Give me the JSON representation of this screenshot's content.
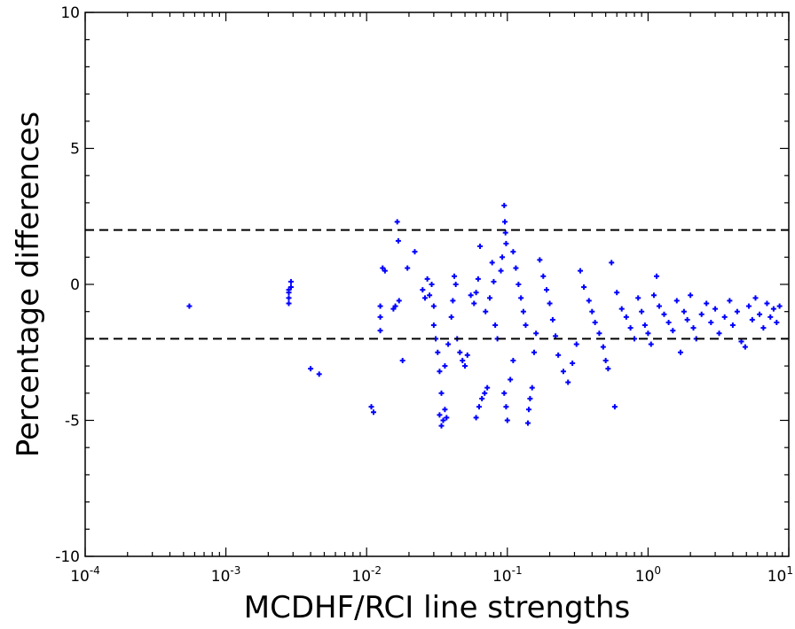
{
  "chart_data": {
    "type": "scatter",
    "xlabel": "MCDHF/RCI line strengths",
    "ylabel": "Percentage differences",
    "x_scale": "log",
    "xlim": [
      0.0001,
      10
    ],
    "ylim": [
      -10,
      10
    ],
    "x_ticks": [
      {
        "value": 0.0001,
        "base": "10",
        "exp": "-4"
      },
      {
        "value": 0.001,
        "base": "10",
        "exp": "-3"
      },
      {
        "value": 0.01,
        "base": "10",
        "exp": "-2"
      },
      {
        "value": 0.1,
        "base": "10",
        "exp": "-1"
      },
      {
        "value": 1,
        "base": "10",
        "exp": "0"
      },
      {
        "value": 10,
        "base": "10",
        "exp": "1"
      }
    ],
    "y_ticks": [
      {
        "value": 10,
        "label": "10"
      },
      {
        "value": 5,
        "label": "5"
      },
      {
        "value": 0,
        "label": "0"
      },
      {
        "value": -5,
        "label": "-5"
      },
      {
        "value": -10,
        "label": "-10"
      }
    ],
    "reference_lines": [
      {
        "y": 2,
        "style": "dashed",
        "color": "#000000"
      },
      {
        "y": -2,
        "style": "dashed",
        "color": "#000000"
      }
    ],
    "grid": false,
    "series": [
      {
        "marker": "+",
        "color": "#0000ff",
        "points": [
          [
            0.00055,
            -0.8
          ],
          [
            0.0028,
            -0.7
          ],
          [
            0.0028,
            -0.5
          ],
          [
            0.0028,
            -0.3
          ],
          [
            0.0029,
            -0.1
          ],
          [
            0.0029,
            0.1
          ],
          [
            0.0028,
            -0.2
          ],
          [
            0.004,
            -3.1
          ],
          [
            0.0046,
            -3.3
          ],
          [
            0.0108,
            -4.5
          ],
          [
            0.0112,
            -4.7
          ],
          [
            0.0125,
            -0.8
          ],
          [
            0.0125,
            -1.2
          ],
          [
            0.0125,
            -1.7
          ],
          [
            0.013,
            0.6
          ],
          [
            0.0135,
            0.5
          ],
          [
            0.0155,
            -0.9
          ],
          [
            0.016,
            -0.8
          ],
          [
            0.017,
            -0.6
          ],
          [
            0.0165,
            2.3
          ],
          [
            0.0168,
            1.6
          ],
          [
            0.018,
            -2.8
          ],
          [
            0.0195,
            0.6
          ],
          [
            0.022,
            1.2
          ],
          [
            0.025,
            -0.2
          ],
          [
            0.026,
            -0.5
          ],
          [
            0.027,
            0.2
          ],
          [
            0.028,
            -0.4
          ],
          [
            0.029,
            0.0
          ],
          [
            0.03,
            -0.8
          ],
          [
            0.03,
            -1.5
          ],
          [
            0.031,
            -2.0
          ],
          [
            0.032,
            -2.5
          ],
          [
            0.033,
            -3.2
          ],
          [
            0.034,
            -4.0
          ],
          [
            0.033,
            -4.8
          ],
          [
            0.034,
            -5.2
          ],
          [
            0.035,
            -5.0
          ],
          [
            0.036,
            -4.6
          ],
          [
            0.037,
            -4.9
          ],
          [
            0.036,
            -3.0
          ],
          [
            0.038,
            -2.2
          ],
          [
            0.04,
            -1.2
          ],
          [
            0.041,
            -0.6
          ],
          [
            0.042,
            0.3
          ],
          [
            0.043,
            0.0
          ],
          [
            0.044,
            -2.0
          ],
          [
            0.046,
            -2.5
          ],
          [
            0.048,
            -2.8
          ],
          [
            0.05,
            -3.0
          ],
          [
            0.052,
            -2.6
          ],
          [
            0.055,
            -0.4
          ],
          [
            0.058,
            -0.7
          ],
          [
            0.06,
            -0.3
          ],
          [
            0.062,
            0.2
          ],
          [
            0.064,
            1.4
          ],
          [
            0.06,
            -4.9
          ],
          [
            0.063,
            -4.5
          ],
          [
            0.066,
            -4.2
          ],
          [
            0.069,
            -4.0
          ],
          [
            0.072,
            -3.8
          ],
          [
            0.07,
            -1.0
          ],
          [
            0.075,
            -0.5
          ],
          [
            0.078,
            0.8
          ],
          [
            0.08,
            0.1
          ],
          [
            0.082,
            -1.5
          ],
          [
            0.085,
            -2.0
          ],
          [
            0.09,
            0.5
          ],
          [
            0.092,
            1.0
          ],
          [
            0.095,
            2.9
          ],
          [
            0.096,
            2.3
          ],
          [
            0.097,
            1.9
          ],
          [
            0.098,
            1.5
          ],
          [
            0.095,
            -4.0
          ],
          [
            0.098,
            -4.5
          ],
          [
            0.1,
            -5.0
          ],
          [
            0.105,
            -3.5
          ],
          [
            0.11,
            -2.8
          ],
          [
            0.11,
            1.2
          ],
          [
            0.115,
            0.6
          ],
          [
            0.12,
            0.0
          ],
          [
            0.125,
            -0.5
          ],
          [
            0.13,
            -1.0
          ],
          [
            0.135,
            -1.5
          ],
          [
            0.14,
            -5.1
          ],
          [
            0.142,
            -4.6
          ],
          [
            0.145,
            -4.2
          ],
          [
            0.15,
            -3.8
          ],
          [
            0.155,
            -2.5
          ],
          [
            0.16,
            -1.8
          ],
          [
            0.17,
            0.9
          ],
          [
            0.18,
            0.3
          ],
          [
            0.19,
            -0.2
          ],
          [
            0.2,
            -0.7
          ],
          [
            0.21,
            -1.3
          ],
          [
            0.22,
            -1.9
          ],
          [
            0.23,
            -2.6
          ],
          [
            0.25,
            -3.2
          ],
          [
            0.27,
            -3.6
          ],
          [
            0.29,
            -2.9
          ],
          [
            0.31,
            -2.2
          ],
          [
            0.33,
            0.5
          ],
          [
            0.35,
            -0.1
          ],
          [
            0.38,
            -0.6
          ],
          [
            0.4,
            -1.0
          ],
          [
            0.42,
            -1.4
          ],
          [
            0.45,
            -1.8
          ],
          [
            0.48,
            -2.3
          ],
          [
            0.5,
            -2.8
          ],
          [
            0.52,
            -3.1
          ],
          [
            0.55,
            0.8
          ],
          [
            0.58,
            -4.5
          ],
          [
            0.6,
            -0.3
          ],
          [
            0.65,
            -0.9
          ],
          [
            0.7,
            -1.2
          ],
          [
            0.75,
            -1.6
          ],
          [
            0.8,
            -2.0
          ],
          [
            0.85,
            -0.5
          ],
          [
            0.9,
            -1.0
          ],
          [
            0.95,
            -1.5
          ],
          [
            1.0,
            -1.8
          ],
          [
            1.05,
            -2.2
          ],
          [
            1.1,
            -0.4
          ],
          [
            1.15,
            0.3
          ],
          [
            1.2,
            -0.8
          ],
          [
            1.3,
            -1.1
          ],
          [
            1.4,
            -1.4
          ],
          [
            1.5,
            -1.7
          ],
          [
            1.6,
            -0.6
          ],
          [
            1.7,
            -2.5
          ],
          [
            1.8,
            -1.0
          ],
          [
            1.9,
            -1.3
          ],
          [
            2.0,
            -0.4
          ],
          [
            2.1,
            -1.6
          ],
          [
            2.2,
            -2.0
          ],
          [
            2.4,
            -1.1
          ],
          [
            2.6,
            -0.7
          ],
          [
            2.8,
            -1.4
          ],
          [
            3.0,
            -0.9
          ],
          [
            3.2,
            -1.8
          ],
          [
            3.5,
            -1.2
          ],
          [
            3.8,
            -0.6
          ],
          [
            4.0,
            -1.5
          ],
          [
            4.3,
            -1.0
          ],
          [
            4.6,
            -2.1
          ],
          [
            4.9,
            -2.3
          ],
          [
            5.2,
            -0.8
          ],
          [
            5.5,
            -1.3
          ],
          [
            5.8,
            -0.5
          ],
          [
            6.2,
            -1.1
          ],
          [
            6.6,
            -1.6
          ],
          [
            7.0,
            -0.7
          ],
          [
            7.4,
            -1.2
          ],
          [
            7.8,
            -0.9
          ],
          [
            8.2,
            -1.4
          ],
          [
            8.6,
            -0.8
          ]
        ]
      }
    ]
  }
}
